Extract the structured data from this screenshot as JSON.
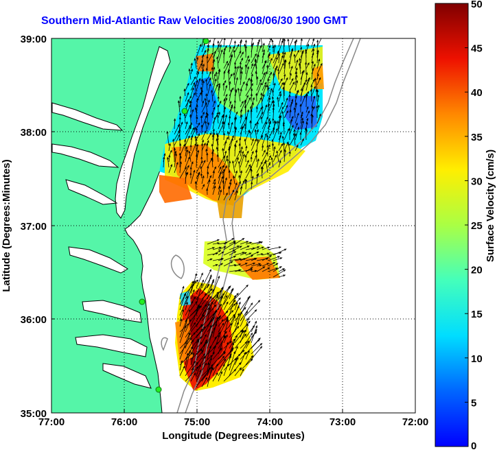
{
  "title": "Southern Mid-Atlantic Raw Velocities 2008/06/30 1900 GMT",
  "axes": {
    "xlabel": "Longitude (Degrees:Minutes)",
    "ylabel": "Latitude (Degrees:Minutes)",
    "xticks": [
      "77:00",
      "76:00",
      "75:00",
      "74:00",
      "73:00",
      "72:00"
    ],
    "yticks": [
      "39:00",
      "38:00",
      "37:00",
      "36:00",
      "35:00"
    ],
    "grid": "dotted"
  },
  "colorbar": {
    "label": "Surface Velocity (cm/s)",
    "ticks": [
      "50",
      "45",
      "40",
      "35",
      "30",
      "25",
      "20",
      "15",
      "10",
      "5",
      "0"
    ],
    "range": [
      0,
      50
    ],
    "colormap": "jet"
  },
  "colors": {
    "land": "#55f5a8",
    "title": "#0000ff",
    "station": "#22ee22"
  }
}
